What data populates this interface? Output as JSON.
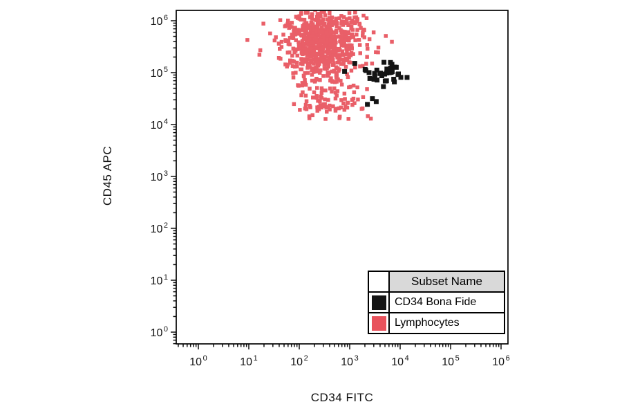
{
  "chart_data": {
    "type": "scatter",
    "title": "",
    "xlabel": "CD34 FITC",
    "ylabel": "CD45 APC",
    "x_scale": "log10",
    "y_scale": "log10",
    "x_tick_exponents": [
      0,
      1,
      2,
      3,
      4,
      5,
      6
    ],
    "y_tick_exponents": [
      0,
      1,
      2,
      3,
      4,
      5,
      6
    ],
    "x_range_decades": [
      -0.44,
      6.14
    ],
    "y_range_decades": [
      -0.23,
      6.2
    ],
    "grid": false,
    "series": [
      {
        "name": "Lymphocytes",
        "color": "#e8525c",
        "marker": "square",
        "marker_size": 5.5,
        "opacity": 0.92,
        "clusters": [
          {
            "cx": 2.45,
            "cy": 5.62,
            "sx": 0.4,
            "sy": 0.3,
            "n": 640
          },
          {
            "cx": 2.5,
            "cy": 4.85,
            "sx": 0.3,
            "sy": 0.28,
            "n": 80
          },
          {
            "cx": 2.55,
            "cy": 4.35,
            "sx": 0.3,
            "sy": 0.12,
            "n": 60
          }
        ]
      },
      {
        "name": "CD34 Bona Fide",
        "color": "#141414",
        "marker": "square",
        "marker_size": 7,
        "opacity": 1,
        "clusters": [
          {
            "cx": 3.6,
            "cy": 4.97,
            "sx": 0.28,
            "sy": 0.1,
            "n": 36
          },
          {
            "cx": 3.5,
            "cy": 4.42,
            "sx": 0.1,
            "sy": 0.04,
            "n": 3
          }
        ]
      }
    ],
    "legend": {
      "position": "bottom-right-inside",
      "header": "Subset Name",
      "entries": [
        {
          "label": "CD34 Bona Fide",
          "color": "#141414"
        },
        {
          "label": "Lymphocytes",
          "color": "#e8525c"
        }
      ]
    }
  }
}
